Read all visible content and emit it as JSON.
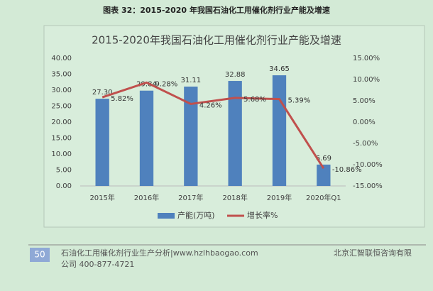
{
  "header": {
    "title": "图表 32：2015-2020 年我国石油化工用催化剂行业产能及增速"
  },
  "chart_data": {
    "type": "bar-line",
    "title": "2015-2020年我国石油化工用催化剂行业产能及增速",
    "categories": [
      "2015年",
      "2016年",
      "2017年",
      "2018年",
      "2019年",
      "2020年Q1"
    ],
    "series": [
      {
        "name": "产能(万吨)",
        "type": "bar",
        "color": "#4f81bd",
        "values": [
          27.3,
          29.84,
          31.11,
          32.88,
          34.65,
          6.69
        ],
        "value_labels": [
          "27.30",
          "29.84",
          "31.11",
          "32.88",
          "34.65",
          "6.69"
        ]
      },
      {
        "name": "增长率%",
        "type": "line",
        "axis": "y2",
        "color": "#c0504d",
        "values": [
          5.82,
          9.28,
          4.26,
          5.68,
          5.39,
          -10.86
        ],
        "value_labels": [
          "5.82%",
          "9.28%",
          "4.26%",
          "5.68%",
          "5.39%",
          "-10.86%"
        ]
      }
    ],
    "ylim": [
      0,
      40
    ],
    "yticks": [
      {
        "value": 0,
        "label": "0.00"
      },
      {
        "value": 5,
        "label": "5.00"
      },
      {
        "value": 10,
        "label": "10.00"
      },
      {
        "value": 15,
        "label": "15.00"
      },
      {
        "value": 20,
        "label": "20.00"
      },
      {
        "value": 25,
        "label": "25.00"
      },
      {
        "value": 30,
        "label": "30.00"
      },
      {
        "value": 35,
        "label": "35.00"
      },
      {
        "value": 40,
        "label": "40.00"
      }
    ],
    "y2lim": [
      -15,
      15
    ],
    "y2ticks": [
      {
        "value": -15,
        "label": "-15.00%"
      },
      {
        "value": -10,
        "label": "-10.00%"
      },
      {
        "value": -5,
        "label": "-5.00%"
      },
      {
        "value": 0,
        "label": "0.00%"
      },
      {
        "value": 5,
        "label": "5.00%"
      },
      {
        "value": 10,
        "label": "10.00%"
      },
      {
        "value": 15,
        "label": "15.00%"
      }
    ],
    "legend": "bottom"
  },
  "footer": {
    "page": "50",
    "left_line1": "石油化工用催化剂行业生产分析|www.hzlhbaogao.com",
    "right_line1": "北京汇智联恒咨询有限",
    "left_line2": "公司  400-877-4721"
  }
}
